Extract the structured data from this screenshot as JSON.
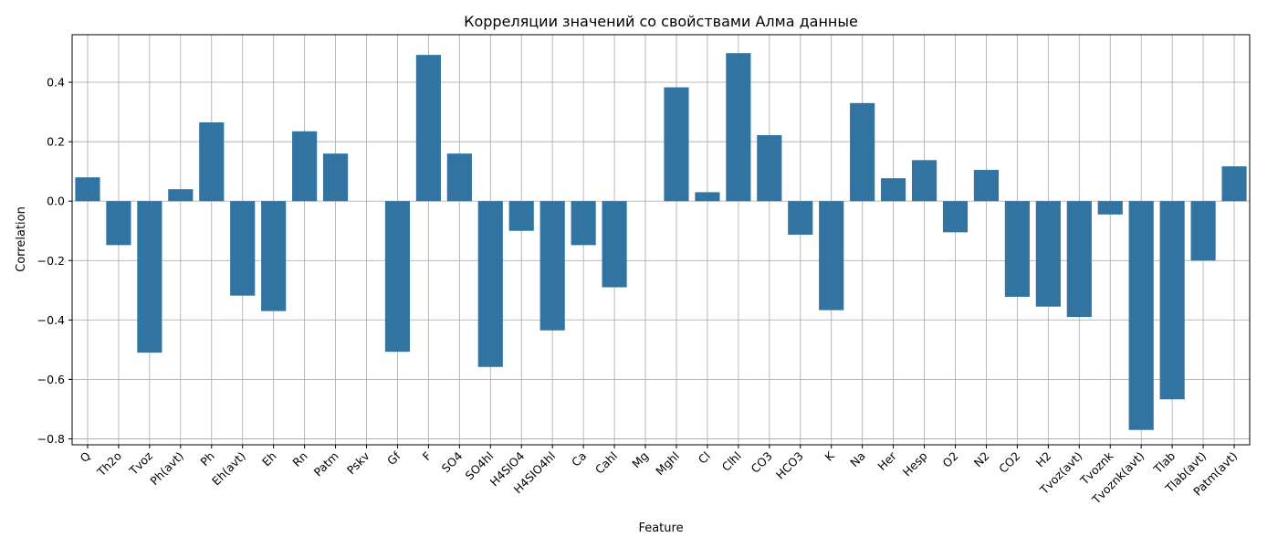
{
  "chart_data": {
    "type": "bar",
    "title": "Корреляции значений со свойствами Алма данные",
    "xlabel": "Feature",
    "ylabel": "Correlation",
    "ylim": [
      -0.82,
      0.56
    ],
    "yticks": [
      -0.8,
      -0.6,
      -0.4,
      -0.2,
      0.0,
      0.2,
      0.4
    ],
    "ytick_labels": [
      "−0.8",
      "−0.6",
      "−0.4",
      "−0.2",
      "0.0",
      "0.2",
      "0.4"
    ],
    "grid": true,
    "bar_color": "#3274a1",
    "categories": [
      "Q",
      "Th2o",
      "Tvoz",
      "Ph(avt)",
      "Ph",
      "Eh(avt)",
      "Eh",
      "Rn",
      "Patm",
      "Pskv",
      "Gf",
      "F",
      "SO4",
      "SO4hl",
      "H4SIO4",
      "H4SIO4hl",
      "Ca",
      "Cahl",
      "Mg",
      "Mghl",
      "Cl",
      "Clhl",
      "CO3",
      "HCO3",
      "K",
      "Na",
      "Her",
      "Hesp",
      "O2",
      "N2",
      "CO2",
      "H2",
      "Tvoz(avt)",
      "Tvoznk",
      "Tvoznk(avt)",
      "Tlab",
      "Tlab(avt)",
      "Patm(avt)"
    ],
    "values": [
      0.08,
      -0.148,
      -0.51,
      0.04,
      0.265,
      -0.318,
      -0.37,
      0.235,
      0.16,
      0.0,
      -0.507,
      0.492,
      0.16,
      -0.558,
      -0.1,
      -0.435,
      -0.148,
      -0.29,
      0.0,
      0.383,
      0.03,
      0.498,
      0.222,
      -0.113,
      -0.367,
      0.33,
      0.077,
      0.138,
      -0.105,
      0.105,
      -0.322,
      -0.355,
      -0.39,
      -0.045,
      -0.77,
      -0.667,
      -0.2,
      0.117
    ]
  }
}
